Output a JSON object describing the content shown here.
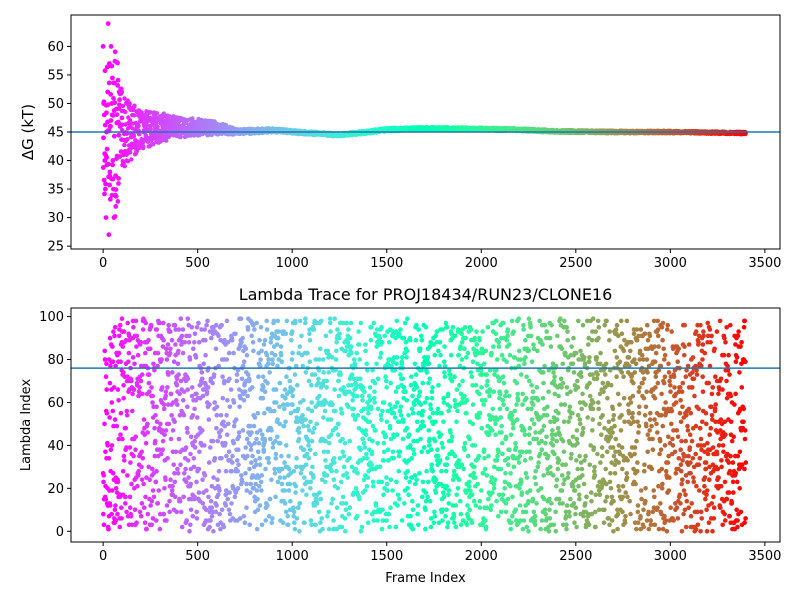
{
  "chart_data": [
    {
      "type": "scatter",
      "title": "",
      "xlabel": "",
      "ylabel": "ΔG (kT)",
      "xlim": [
        -170,
        3580
      ],
      "ylim": [
        24.5,
        65.5
      ],
      "xticks": [
        0,
        500,
        1000,
        1500,
        2000,
        2500,
        3000,
        3500
      ],
      "yticks": [
        25,
        30,
        35,
        40,
        45,
        50,
        55,
        60
      ],
      "color_map": "rainbow",
      "color_by": "frame index",
      "reference_line": {
        "orientation": "horizontal",
        "y": 45.0,
        "color": "#1f77b4"
      },
      "envelope": [
        [
          0,
          20,
          63
        ],
        [
          50,
          20,
          52
        ],
        [
          100,
          6.5,
          6.5
        ],
        [
          150,
          5.0,
          5.0
        ],
        [
          200,
          3.5,
          3.5
        ],
        [
          300,
          2.6,
          2.6
        ],
        [
          400,
          1.8,
          1.8
        ],
        [
          600,
          1.2,
          1.2
        ],
        [
          700,
          0.5,
          0.5
        ],
        [
          1000,
          0.3,
          0.3
        ],
        [
          3400,
          0.2,
          0.2
        ]
      ],
      "mean_trend": [
        [
          0,
          45.0
        ],
        [
          50,
          45.0
        ],
        [
          100,
          45.0
        ],
        [
          200,
          45.3
        ],
        [
          300,
          45.8
        ],
        [
          500,
          45.8
        ],
        [
          620,
          45.7
        ],
        [
          700,
          45.0
        ],
        [
          900,
          45.3
        ],
        [
          1050,
          44.9
        ],
        [
          1250,
          44.5
        ],
        [
          1400,
          45.0
        ],
        [
          1500,
          45.4
        ],
        [
          1700,
          45.6
        ],
        [
          2000,
          45.5
        ],
        [
          2200,
          45.4
        ],
        [
          2400,
          45.1
        ],
        [
          2700,
          45.0
        ],
        [
          3000,
          45.0
        ],
        [
          3400,
          44.8
        ]
      ],
      "frame_count": 3400,
      "point_color": "rainbow by frame index"
    },
    {
      "type": "scatter",
      "title": "Lambda Trace for PROJ18434/RUN23/CLONE16",
      "xlabel": "Frame Index",
      "ylabel": "Lambda Index",
      "xlim": [
        -170,
        3580
      ],
      "ylim": [
        -5,
        104
      ],
      "xticks": [
        0,
        500,
        1000,
        1500,
        2000,
        2500,
        3000,
        3500
      ],
      "yticks": [
        0,
        20,
        40,
        60,
        80,
        100
      ],
      "color_map": "rainbow",
      "color_by": "frame index",
      "reference_line": {
        "orientation": "horizontal",
        "y": 76,
        "color": "#1f77b4"
      },
      "lambda_range": [
        0,
        99
      ],
      "frame_count": 3400,
      "point_color": "rainbow by frame index"
    }
  ]
}
